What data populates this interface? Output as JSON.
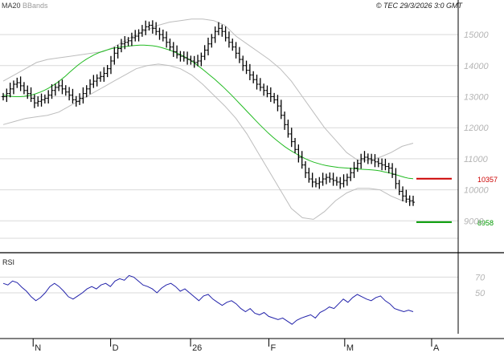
{
  "header": {
    "legend_ma": "MA20",
    "legend_bb": "BBands",
    "timestamp": "© TEC 29/3/2026 3:0 GMT"
  },
  "colors": {
    "price_bars": "#000000",
    "ma_line": "#22bb22",
    "bollinger": "#bdbdbd",
    "rsi_line": "#2222aa",
    "resistance": "#cc0000",
    "support": "#009900",
    "grid": "#d9d9d9"
  },
  "chart_data": [
    {
      "type": "ohlc",
      "series": [
        "Price",
        "MA20",
        "BBands"
      ],
      "ylim": [
        8000,
        15700
      ],
      "y_ticks": [
        15000,
        14000,
        13000,
        12000,
        11000,
        10000,
        9000
      ],
      "y_tick_labels": [
        "15000",
        "14000",
        "13000",
        "12000",
        "11000",
        "10000",
        "9000"
      ],
      "x_tick_labels": [
        "N",
        "D",
        "26",
        "F",
        "M",
        "A"
      ],
      "annotations": [
        {
          "label": "10357",
          "value": 10357,
          "color": "#cc0000"
        },
        {
          "label": "8958",
          "value": 8958,
          "color": "#009900"
        }
      ],
      "close": [
        13000,
        13100,
        13250,
        13400,
        13450,
        13350,
        13200,
        13100,
        12950,
        12800,
        12850,
        12900,
        12950,
        13050,
        13200,
        13300,
        13350,
        13250,
        13150,
        13050,
        12900,
        12850,
        12950,
        13100,
        13250,
        13400,
        13500,
        13600,
        13650,
        13750,
        13900,
        14150,
        14400,
        14550,
        14700,
        14750,
        14800,
        14900,
        14950,
        15050,
        15150,
        15250,
        15300,
        15200,
        15100,
        15000,
        14900,
        14750,
        14600,
        14450,
        14350,
        14300,
        14250,
        14200,
        14150,
        14100,
        14150,
        14300,
        14500,
        14700,
        14900,
        15100,
        15200,
        15100,
        14900,
        14750,
        14600,
        14400,
        14200,
        14000,
        13850,
        13700,
        13550,
        13400,
        13300,
        13200,
        13100,
        13000,
        12900,
        12700,
        12400,
        12100,
        11800,
        11550,
        11300,
        11050,
        10800,
        10550,
        10350,
        10250,
        10200,
        10250,
        10350,
        10400,
        10350,
        10300,
        10250,
        10200,
        10300,
        10400,
        10550,
        10700,
        10850,
        11000,
        11050,
        11000,
        10950,
        10900,
        10850,
        10800,
        10750,
        10700,
        10500,
        10200,
        9950,
        9800,
        9700,
        9650,
        9600
      ],
      "ma20": [
        13050,
        13030,
        13010,
        13000,
        13000,
        13010,
        13030,
        13060,
        13100,
        13150,
        13210,
        13280,
        13360,
        13450,
        13550,
        13660,
        13780,
        13900,
        14010,
        14110,
        14200,
        14280,
        14350,
        14410,
        14460,
        14500,
        14540,
        14570,
        14590,
        14610,
        14620,
        14640,
        14650,
        14660,
        14660,
        14650,
        14640,
        14620,
        14590,
        14550,
        14510,
        14460,
        14400,
        14340,
        14270,
        14190,
        14100,
        14000,
        13900,
        13790,
        13680,
        13570,
        13450,
        13330,
        13200,
        13070,
        12930,
        12790,
        12650,
        12510,
        12370,
        12230,
        12090,
        11960,
        11830,
        11710,
        11600,
        11490,
        11390,
        11300,
        11220,
        11140,
        11070,
        11000,
        10940,
        10890,
        10850,
        10810,
        10780,
        10760,
        10740,
        10720,
        10710,
        10700,
        10690,
        10680,
        10670,
        10660,
        10650,
        10640,
        10630,
        10610,
        10580,
        10550,
        10520,
        10480,
        10440,
        10400,
        10370,
        10357
      ],
      "bb_upper": [
        13500,
        13700,
        13900,
        14100,
        14200,
        14250,
        14300,
        14350,
        14400,
        14450,
        14600,
        14800,
        15000,
        15150,
        15300,
        15400,
        15450,
        15500,
        15500,
        15450,
        15300,
        14950,
        14700,
        14450,
        14200,
        13900,
        13500,
        13000,
        12500,
        12000,
        11600,
        11200,
        10950,
        10950,
        11050,
        11200,
        11400,
        11500
      ],
      "bb_lower": [
        12100,
        12200,
        12300,
        12350,
        12400,
        12500,
        12700,
        12900,
        13100,
        13300,
        13500,
        13700,
        13900,
        14000,
        14050,
        14000,
        13900,
        13700,
        13400,
        13050,
        12700,
        12300,
        11800,
        11200,
        10600,
        10000,
        9400,
        9100,
        9050,
        9300,
        9650,
        9900,
        10050,
        10050,
        10000,
        9800,
        9650,
        9600
      ],
      "rsi": [
        62,
        60,
        65,
        63,
        57,
        52,
        45,
        40,
        44,
        50,
        58,
        62,
        58,
        52,
        45,
        42,
        46,
        50,
        55,
        58,
        55,
        60,
        62,
        58,
        65,
        68,
        66,
        72,
        70,
        65,
        60,
        58,
        55,
        50,
        56,
        60,
        62,
        58,
        52,
        55,
        50,
        45,
        40,
        46,
        48,
        42,
        38,
        34,
        38,
        40,
        36,
        30,
        26,
        30,
        24,
        22,
        25,
        20,
        18,
        16,
        18,
        14,
        10,
        15,
        18,
        20,
        22,
        18,
        25,
        28,
        32,
        30,
        36,
        42,
        38,
        44,
        48,
        45,
        42,
        40,
        44,
        46,
        40,
        36,
        30,
        28,
        26,
        28,
        26
      ],
      "rsi_label": "RSI",
      "rsi_ticks": [
        70,
        50
      ],
      "rsi_tick_labels": [
        "70",
        "50"
      ]
    }
  ]
}
